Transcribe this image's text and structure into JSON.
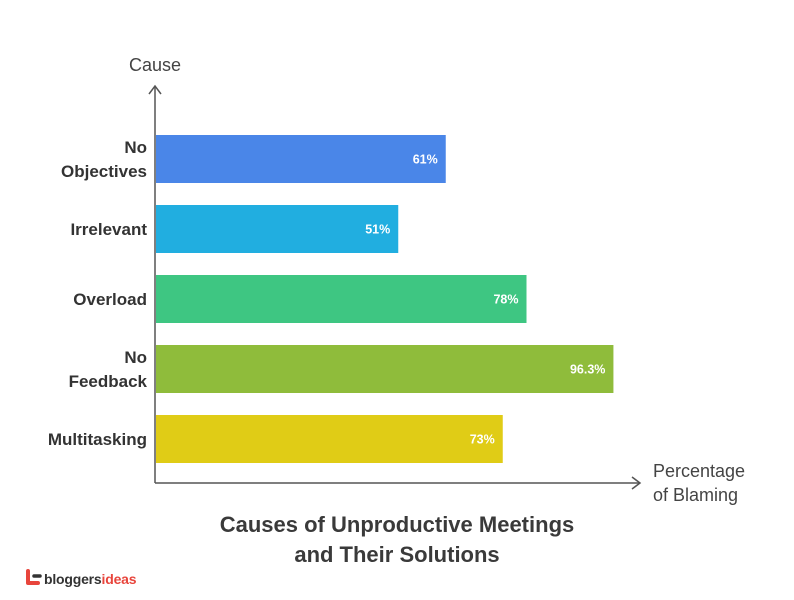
{
  "chart_data": {
    "type": "bar",
    "orientation": "horizontal",
    "title_lines": [
      "Causes of Unproductive Meetings",
      "and Their Solutions"
    ],
    "ylabel": "Cause",
    "xlabel_lines": [
      "Percentage",
      "of Blaming"
    ],
    "categories": [
      [
        "No",
        "Objectives"
      ],
      [
        "Irrelevant"
      ],
      [
        "Overload"
      ],
      [
        "No",
        "Feedback"
      ],
      [
        "Multitasking"
      ]
    ],
    "values": [
      61,
      51,
      78,
      96.3,
      73
    ],
    "value_labels": [
      "61%",
      "51%",
      "78%",
      "96.3%",
      "73%"
    ],
    "colors": [
      "#4a86e8",
      "#21aee0",
      "#3ec682",
      "#8fbc3b",
      "#e0cc16"
    ],
    "xlim": [
      0,
      100
    ],
    "grid": false,
    "legend": "none"
  },
  "branding": {
    "logo_part1": "bloggers",
    "logo_part2": "ideas",
    "logo_color": "#e8453c"
  }
}
